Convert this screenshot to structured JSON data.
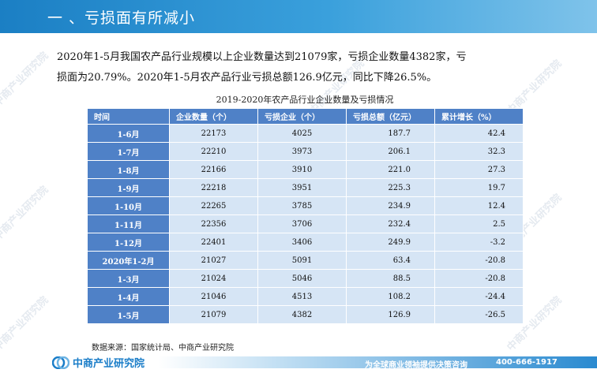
{
  "header": {
    "title": "一 、亏损面有所减小"
  },
  "intro": {
    "line1": "2020年1-5月我国农产品行业规模以上企业数量达到21079家，亏损企业数量4382家，亏",
    "line2": "损面为20.79%。2020年1-5月农产品行业亏损总额126.9亿元，同比下降26.5%。"
  },
  "table": {
    "caption": "2019-2020年农产品行业企业数量及亏损情况",
    "columns": [
      "时间",
      "企业数量（个）",
      "亏损企业（个）",
      "亏损总额（亿元）",
      "累计增长（%）"
    ],
    "rows": [
      [
        "1-6月",
        "22173",
        "4025",
        "187.7",
        "42.4"
      ],
      [
        "1-7月",
        "22210",
        "3973",
        "206.1",
        "32.3"
      ],
      [
        "1-8月",
        "22166",
        "3910",
        "221.0",
        "27.3"
      ],
      [
        "1-9月",
        "22218",
        "3951",
        "225.3",
        "19.7"
      ],
      [
        "1-10月",
        "22265",
        "3785",
        "234.9",
        "12.4"
      ],
      [
        "1-11月",
        "22356",
        "3706",
        "232.4",
        "2.5"
      ],
      [
        "1-12月",
        "22401",
        "3406",
        "249.9",
        "-3.2"
      ],
      [
        "2020年1-2月",
        "21027",
        "5091",
        "63.4",
        "-20.8"
      ],
      [
        "1-3月",
        "21024",
        "5046",
        "88.5",
        "-20.8"
      ],
      [
        "1-4月",
        "21046",
        "4513",
        "108.2",
        "-24.4"
      ],
      [
        "1-5月",
        "21079",
        "4382",
        "126.9",
        "-26.5"
      ]
    ]
  },
  "source": "数据来源：国家统计局、中商产业研究院",
  "footer": {
    "logo_text": "中商产业研究院",
    "slogan": "为全球商业领袖提供决策咨询",
    "phone": "400-666-1917"
  },
  "watermark": {
    "text": "中商产业研究院"
  },
  "colors": {
    "header_blue": "#1b7fc4",
    "table_header": "#4f81c7",
    "table_cell": "#d6e5f5"
  }
}
